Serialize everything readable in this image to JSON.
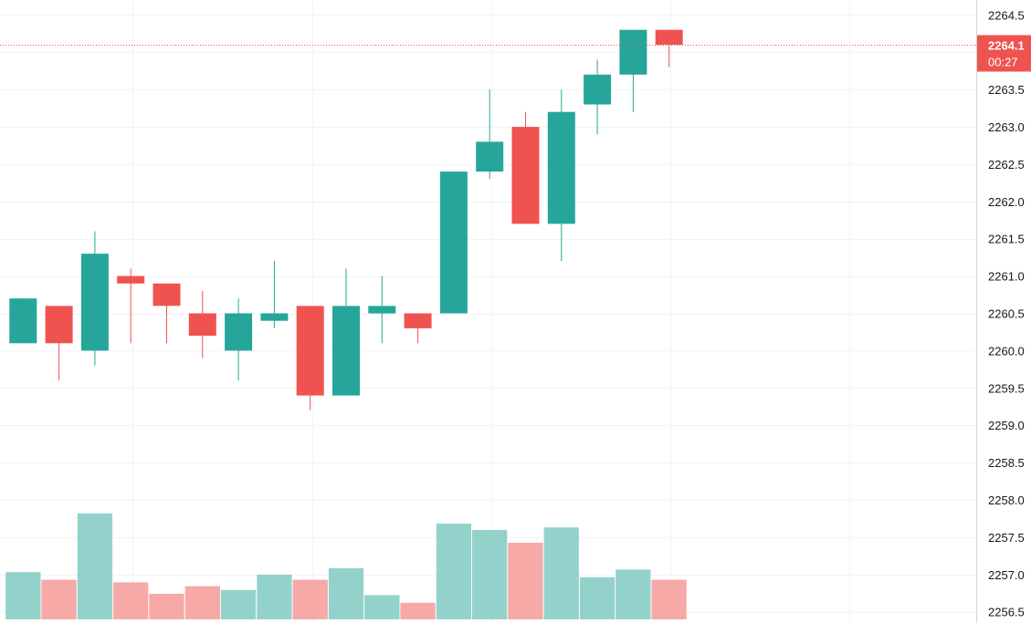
{
  "chart_data": {
    "type": "candlestick",
    "ylim": [
      2256.35,
      2264.7
    ],
    "y_ticks": [
      "2256.5",
      "2257.0",
      "2257.5",
      "2258.0",
      "2258.5",
      "2259.0",
      "2259.5",
      "2260.0",
      "2260.5",
      "2261.0",
      "2261.5",
      "2262.0",
      "2262.5",
      "2263.0",
      "2263.5",
      "2264.0",
      "2264.5"
    ],
    "grid": true,
    "last_price": "2264.1",
    "countdown": "00:27",
    "colors": {
      "up": "#26a69a",
      "down": "#ef5350",
      "up_volume": "#93d2ca",
      "down_volume": "#f7a9a7",
      "grid": "#f0f3fa",
      "axis_border": "#d1d4dc",
      "price_line": "#ef5350"
    },
    "candles": [
      {
        "open": 2260.1,
        "high": 2260.7,
        "low": 2260.1,
        "close": 2260.7,
        "volume": 0.37
      },
      {
        "open": 2260.6,
        "high": 2260.6,
        "low": 2259.6,
        "close": 2260.1,
        "volume": 0.31
      },
      {
        "open": 2260.0,
        "high": 2261.6,
        "low": 2259.8,
        "close": 2261.3,
        "volume": 0.83
      },
      {
        "open": 2261.0,
        "high": 2261.1,
        "low": 2260.1,
        "close": 2260.9,
        "volume": 0.29
      },
      {
        "open": 2260.9,
        "high": 2260.9,
        "low": 2260.1,
        "close": 2260.6,
        "volume": 0.2
      },
      {
        "open": 2260.5,
        "high": 2260.8,
        "low": 2259.9,
        "close": 2260.2,
        "volume": 0.26
      },
      {
        "open": 2260.0,
        "high": 2260.7,
        "low": 2259.6,
        "close": 2260.5,
        "volume": 0.23
      },
      {
        "open": 2260.4,
        "high": 2261.2,
        "low": 2260.3,
        "close": 2260.5,
        "volume": 0.35
      },
      {
        "open": 2260.6,
        "high": 2260.6,
        "low": 2259.2,
        "close": 2259.4,
        "volume": 0.31
      },
      {
        "open": 2259.4,
        "high": 2261.1,
        "low": 2259.4,
        "close": 2260.6,
        "volume": 0.4
      },
      {
        "open": 2260.5,
        "high": 2261.0,
        "low": 2260.1,
        "close": 2260.6,
        "volume": 0.19
      },
      {
        "open": 2260.5,
        "high": 2260.5,
        "low": 2260.1,
        "close": 2260.3,
        "volume": 0.13
      },
      {
        "open": 2260.5,
        "high": 2262.4,
        "low": 2260.5,
        "close": 2262.4,
        "volume": 0.75
      },
      {
        "open": 2262.4,
        "high": 2263.5,
        "low": 2262.3,
        "close": 2262.8,
        "volume": 0.7
      },
      {
        "open": 2263.0,
        "high": 2263.2,
        "low": 2261.7,
        "close": 2261.7,
        "volume": 0.6
      },
      {
        "open": 2261.7,
        "high": 2263.5,
        "low": 2261.2,
        "close": 2263.2,
        "volume": 0.72
      },
      {
        "open": 2263.3,
        "high": 2263.9,
        "low": 2262.9,
        "close": 2263.7,
        "volume": 0.33
      },
      {
        "open": 2263.7,
        "high": 2264.3,
        "low": 2263.2,
        "close": 2264.3,
        "volume": 0.39
      },
      {
        "open": 2264.3,
        "high": 2264.3,
        "low": 2263.8,
        "close": 2264.1,
        "volume": 0.31
      }
    ]
  }
}
